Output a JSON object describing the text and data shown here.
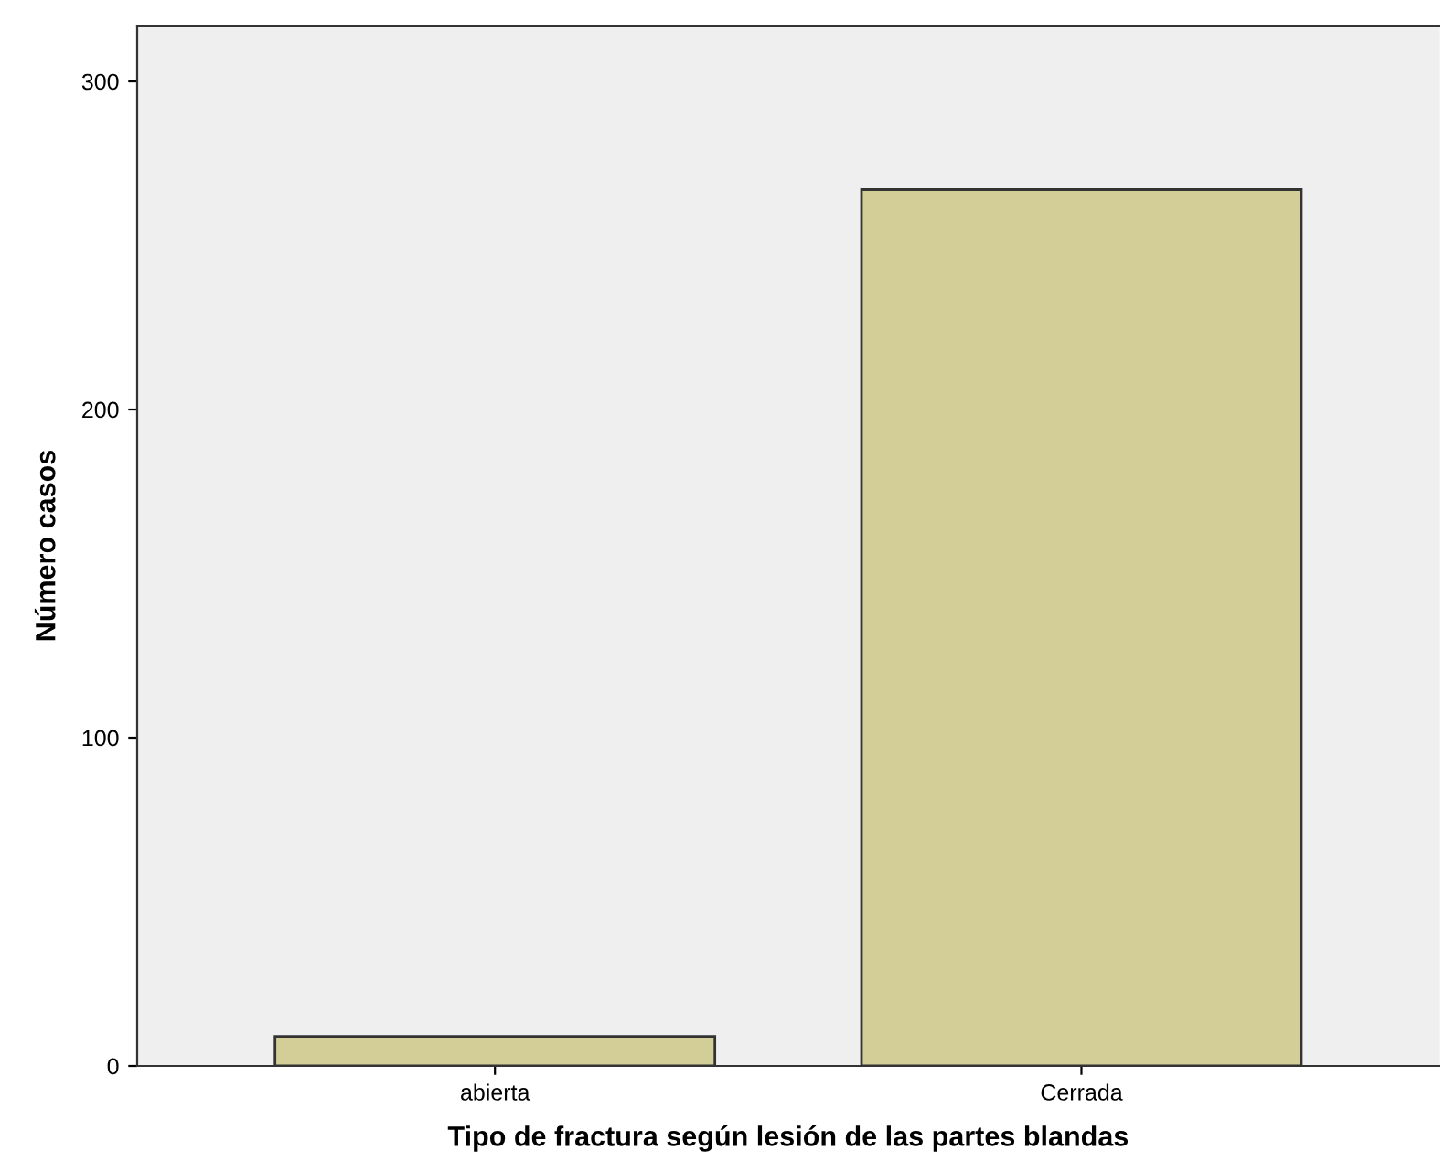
{
  "chart_data": {
    "type": "bar",
    "xlabel": "Tipo de fractura según lesión de las partes blandas",
    "ylabel": "Número casos",
    "categories": [
      "abierta",
      "Cerrada"
    ],
    "values": [
      9,
      267
    ],
    "color": "#d3ce97",
    "ylim": [
      0,
      317
    ],
    "yticks": [
      0,
      100,
      200,
      300
    ],
    "grid": false,
    "legend": false
  }
}
